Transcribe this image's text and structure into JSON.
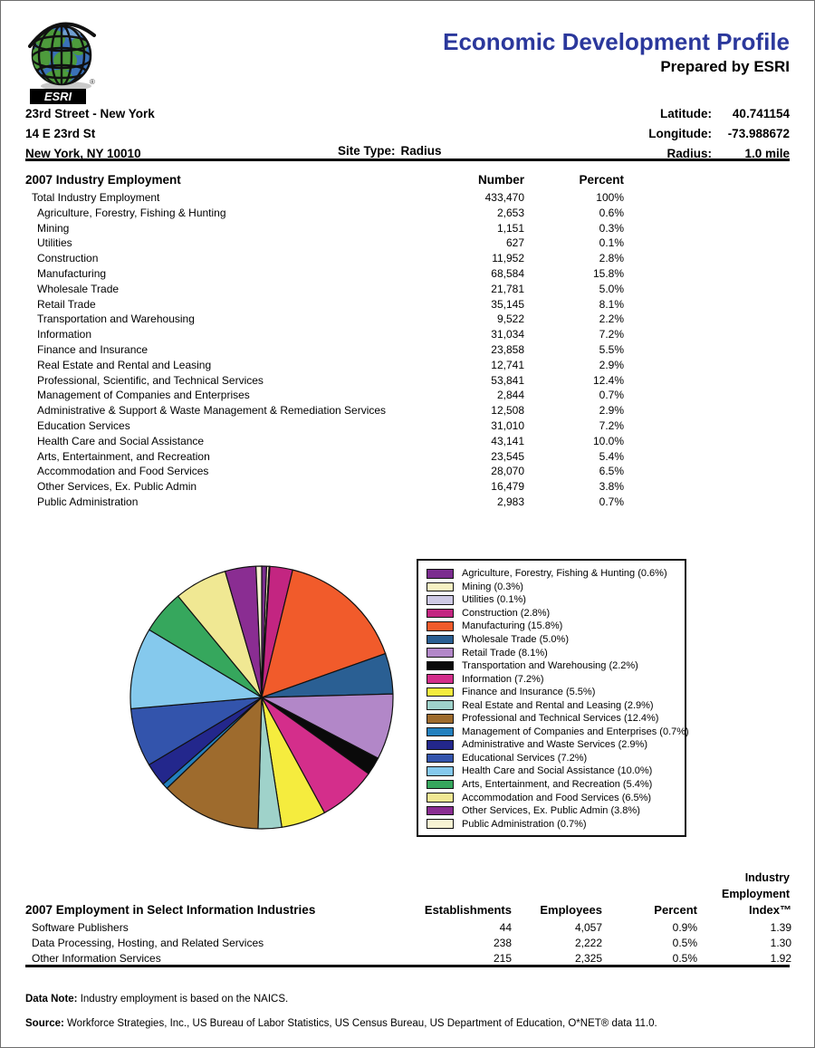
{
  "page": {
    "title": "Economic Development Profile",
    "subtitle": "Prepared by ESRI",
    "title_color": "#2B389C"
  },
  "logo": {
    "brand": "ESRI"
  },
  "site": {
    "name": "23rd Street - New York",
    "street": "14 E 23rd St",
    "city": "New York, NY 10010",
    "site_type_label": "Site Type:",
    "site_type_value": "Radius",
    "geo": [
      {
        "label": "Latitude:",
        "value": "40.741154"
      },
      {
        "label": "Longitude:",
        "value": "-73.988672"
      },
      {
        "label": "Radius:",
        "value": "1.0 mile"
      }
    ]
  },
  "industry_table": {
    "title": "2007 Industry Employment",
    "col_number": "Number",
    "col_percent": "Percent",
    "rows": [
      {
        "label": "Total Industry Employment",
        "number": "433,470",
        "percent": "100%",
        "indent": 1
      },
      {
        "label": "Agriculture, Forestry, Fishing & Hunting",
        "number": "2,653",
        "percent": "0.6%",
        "indent": 2
      },
      {
        "label": "Mining",
        "number": "1,151",
        "percent": "0.3%",
        "indent": 2
      },
      {
        "label": "Utilities",
        "number": "627",
        "percent": "0.1%",
        "indent": 2
      },
      {
        "label": "Construction",
        "number": "11,952",
        "percent": "2.8%",
        "indent": 2
      },
      {
        "label": "Manufacturing",
        "number": "68,584",
        "percent": "15.8%",
        "indent": 2
      },
      {
        "label": "Wholesale Trade",
        "number": "21,781",
        "percent": "5.0%",
        "indent": 2
      },
      {
        "label": "Retail Trade",
        "number": "35,145",
        "percent": "8.1%",
        "indent": 2
      },
      {
        "label": "Transportation and Warehousing",
        "number": "9,522",
        "percent": "2.2%",
        "indent": 2
      },
      {
        "label": "Information",
        "number": "31,034",
        "percent": "7.2%",
        "indent": 2
      },
      {
        "label": "Finance and Insurance",
        "number": "23,858",
        "percent": "5.5%",
        "indent": 2
      },
      {
        "label": "Real Estate and Rental and Leasing",
        "number": "12,741",
        "percent": "2.9%",
        "indent": 2
      },
      {
        "label": "Professional, Scientific, and Technical Services",
        "number": "53,841",
        "percent": "12.4%",
        "indent": 2
      },
      {
        "label": "Management of Companies and Enterprises",
        "number": "2,844",
        "percent": "0.7%",
        "indent": 2
      },
      {
        "label": "Administrative & Support & Waste Management & Remediation Services",
        "number": "12,508",
        "percent": "2.9%",
        "indent": 2
      },
      {
        "label": "Education Services",
        "number": "31,010",
        "percent": "7.2%",
        "indent": 2
      },
      {
        "label": "Health Care and Social Assistance",
        "number": "43,141",
        "percent": "10.0%",
        "indent": 2
      },
      {
        "label": "Arts, Entertainment, and Recreation",
        "number": "23,545",
        "percent": "5.4%",
        "indent": 2
      },
      {
        "label": "Accommodation and Food Services",
        "number": "28,070",
        "percent": "6.5%",
        "indent": 2
      },
      {
        "label": "Other Services, Ex. Public Admin",
        "number": "16,479",
        "percent": "3.8%",
        "indent": 2
      },
      {
        "label": "Public Administration",
        "number": "2,983",
        "percent": "0.7%",
        "indent": 2
      }
    ]
  },
  "chart_data": {
    "type": "pie",
    "title": "2007 Industry Employment share by sector",
    "start_angle_deg": -90,
    "direction": "clockwise",
    "legend_position": "right",
    "labels": [
      "Agriculture, Forestry, Fishing & Hunting",
      "Mining",
      "Utilities",
      "Construction",
      "Manufacturing",
      "Wholesale Trade",
      "Retail Trade",
      "Transportation and Warehousing",
      "Information",
      "Finance and Insurance",
      "Real Estate and Rental and Leasing",
      "Professional and Technical Services",
      "Management of Companies and Enterprises",
      "Administrative and Waste Services",
      "Educational Services",
      "Health Care and Social Assistance",
      "Arts, Entertainment, and Recreation",
      "Accommodation and Food Services",
      "Other Services, Ex. Public Admin",
      "Public Administration"
    ],
    "values": [
      0.6,
      0.3,
      0.1,
      2.8,
      15.8,
      5.0,
      8.1,
      2.2,
      7.2,
      5.5,
      2.9,
      12.4,
      0.7,
      2.9,
      7.2,
      10.0,
      5.4,
      6.5,
      3.8,
      0.7
    ],
    "colors": [
      "#7B2C8F",
      "#F6F1C3",
      "#CEC9E5",
      "#C32581",
      "#F15B2B",
      "#2A5F93",
      "#B287C8",
      "#0A0A0A",
      "#D42E8B",
      "#F5EC3E",
      "#9FD2CA",
      "#9E6B2D",
      "#2380BE",
      "#23278C",
      "#3354AC",
      "#85C9ED",
      "#36A75D",
      "#F0E893",
      "#8A2D92",
      "#F7F3D3"
    ],
    "legend_labels": [
      "Agriculture, Forestry, Fishing & Hunting (0.6%)",
      "Mining (0.3%)",
      "Utilities (0.1%)",
      "Construction  (2.8%)",
      "Manufacturing (15.8%)",
      "Wholesale Trade (5.0%)",
      "Retail Trade (8.1%)",
      "Transportation and Warehousing (2.2%)",
      "Information (7.2%)",
      "Finance and Insurance (5.5%)",
      "Real Estate and Rental and Leasing (2.9%)",
      "Professional and Technical Services (12.4%)",
      "Management of Companies and Enterprises (0.7%)",
      "Administrative and Waste Services (2.9%)",
      "Educational Services (7.2%)",
      "Health Care and Social Assistance (10.0%)",
      "Arts, Entertainment, and Recreation (5.4%)",
      "Accommodation and Food Services (6.5%)",
      "Other Services, Ex. Public Admin (3.8%)",
      "Public Administration (0.7%)"
    ]
  },
  "info_table": {
    "title": "2007 Employment in Select Information Industries",
    "index_header_lines": [
      "Industry",
      "Employment"
    ],
    "columns": [
      "Establishments",
      "Employees",
      "Percent",
      "Index™"
    ],
    "rows": [
      {
        "label": "Software Publishers",
        "establishments": "44",
        "employees": "4,057",
        "percent": "0.9%",
        "index": "1.39"
      },
      {
        "label": "Data Processing, Hosting, and Related Services",
        "establishments": "238",
        "employees": "2,222",
        "percent": "0.5%",
        "index": "1.30"
      },
      {
        "label": "Other Information Services",
        "establishments": "215",
        "employees": "2,325",
        "percent": "0.5%",
        "index": "1.92"
      }
    ]
  },
  "footer": {
    "data_note_label": "Data Note:",
    "data_note_text": "Industry employment is based on the NAICS.",
    "source_label": "Source:",
    "source_text": "Workforce Strategies, Inc., US Bureau of Labor Statistics, US Census Bureau, US Department of Education, O*NET® data 11.0."
  }
}
